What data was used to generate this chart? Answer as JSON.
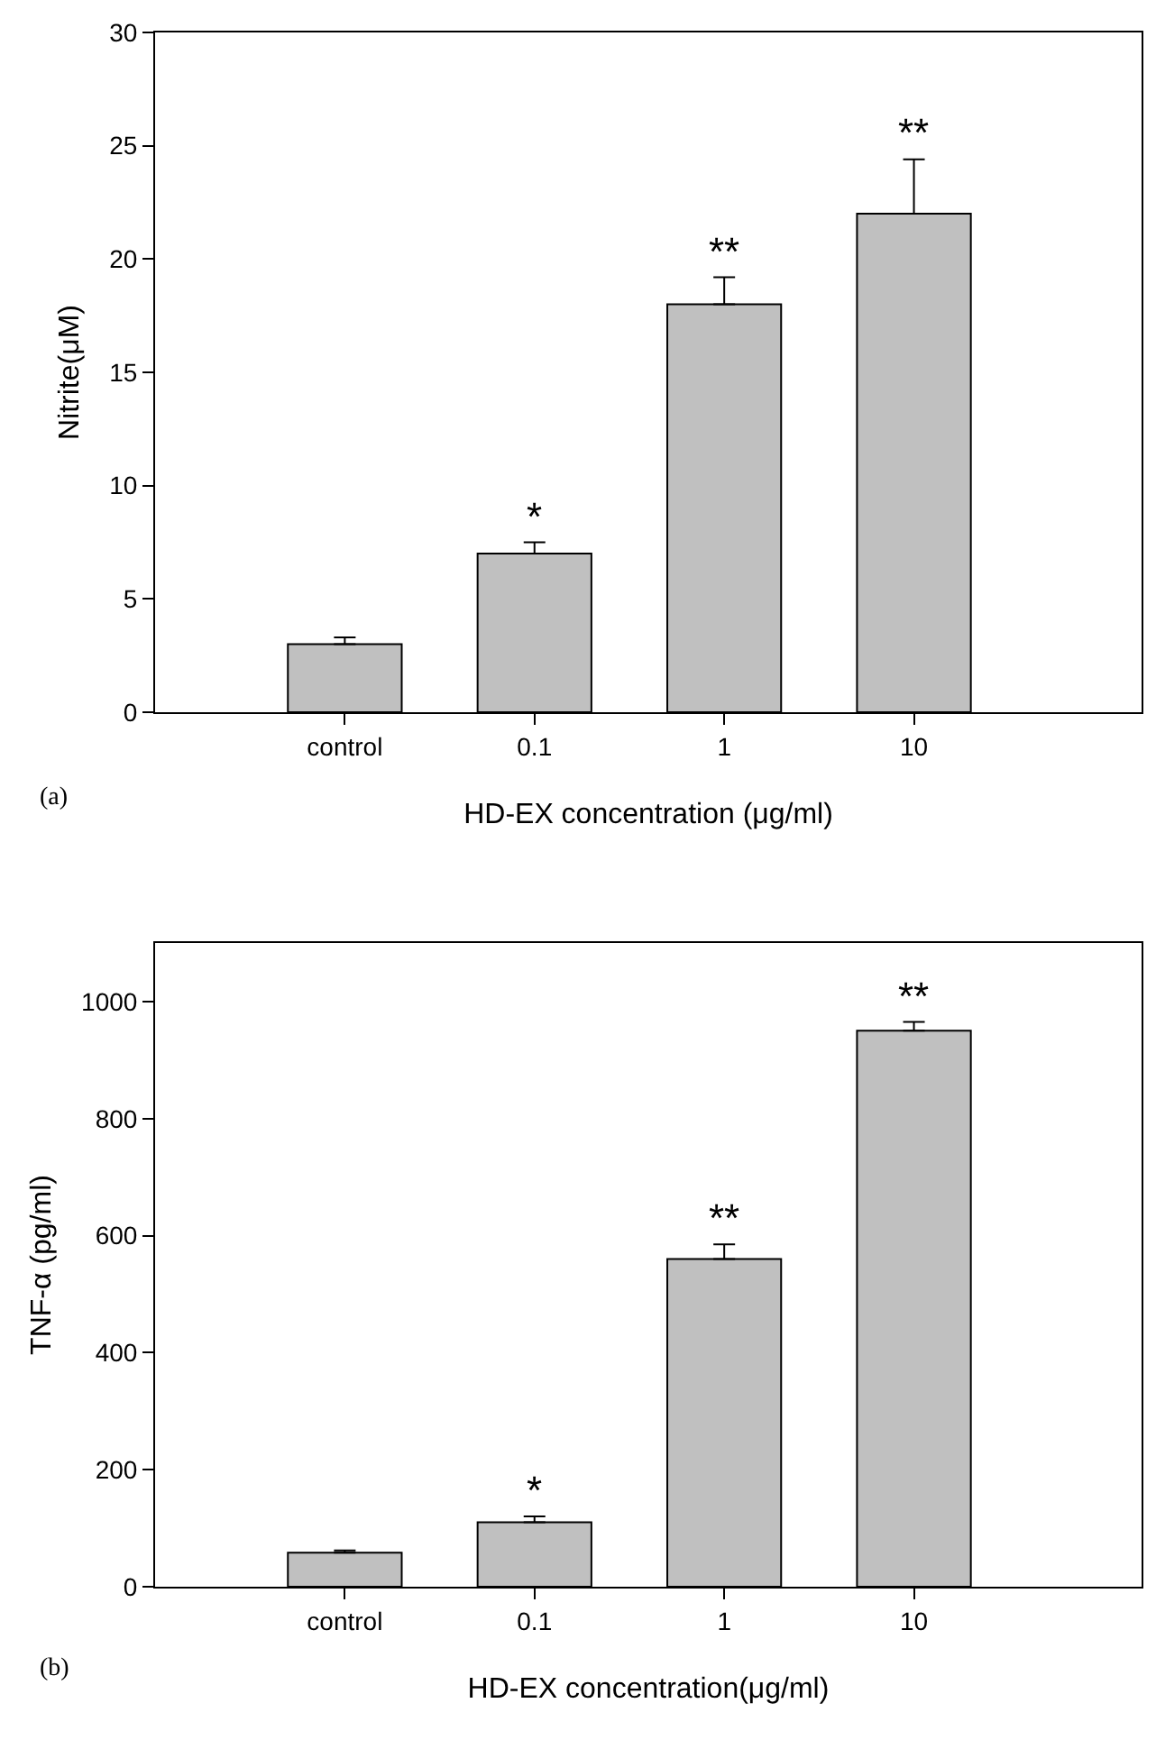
{
  "chart_data": [
    {
      "type": "bar",
      "categories": [
        "control",
        "0.1",
        "1",
        "10"
      ],
      "values": [
        3,
        7,
        18,
        22
      ],
      "color": "#c0c0c0",
      "errors": [
        [
          3,
          3.3
        ],
        [
          7,
          7.5
        ],
        [
          18,
          19.2
        ],
        [
          22,
          24.4
        ]
      ],
      "ylim": [
        0,
        30
      ],
      "yticks": [
        0,
        5,
        10,
        15,
        20,
        25,
        30
      ],
      "ylabel": "Nitrite(μM)",
      "xlabel": "HD-EX concentration (μg/ml)",
      "annotations": [
        {
          "text": "*",
          "x": "0.1",
          "y": 7.5
        },
        {
          "text": "**",
          "x": "1",
          "y": 19.2
        },
        {
          "text": "**",
          "x": "10",
          "y": 24.4
        },
        "(a)"
      ]
    },
    {
      "type": "bar",
      "categories": [
        "control",
        "0.1",
        "1",
        "10"
      ],
      "values": [
        58,
        110,
        560,
        950
      ],
      "color": "#c0c0c0",
      "errors": [
        [
          58,
          62
        ],
        [
          110,
          120
        ],
        [
          560,
          585
        ],
        [
          950,
          965
        ]
      ],
      "ylim": [
        0,
        1100
      ],
      "yticks": [
        0,
        200,
        400,
        600,
        800,
        1000
      ],
      "ylabel": "TNF-α (pg/ml)",
      "xlabel": "HD-EX concentration(μg/ml)",
      "annotations": [
        {
          "text": "*",
          "x": "0.1",
          "y": 120
        },
        {
          "text": "**",
          "x": "1",
          "y": 585
        },
        {
          "text": "**",
          "x": "10",
          "y": 965
        },
        "(b)"
      ]
    }
  ]
}
